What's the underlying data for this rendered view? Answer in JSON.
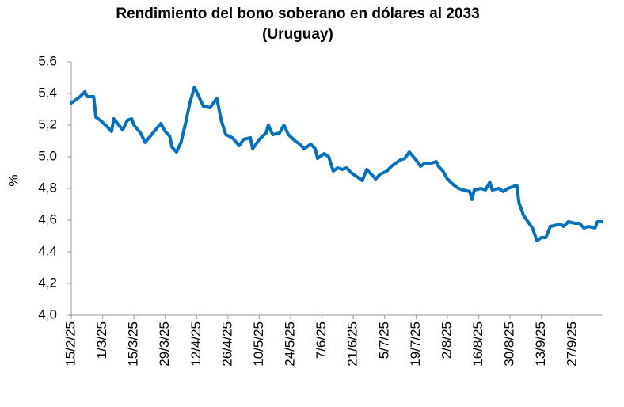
{
  "chart_data": {
    "type": "line",
    "title": [
      "Rendimiento del bono soberano en dólares al 2033",
      "(Uruguay)"
    ],
    "y_label": "%",
    "x": [
      "2025-02-15",
      "2025-02-19",
      "2025-02-21",
      "2025-02-22",
      "2025-02-25",
      "2025-02-26",
      "2025-02-28",
      "2025-03-03",
      "2025-03-05",
      "2025-03-06",
      "2025-03-10",
      "2025-03-12",
      "2025-03-14",
      "2025-03-15",
      "2025-03-18",
      "2025-03-20",
      "2025-03-24",
      "2025-03-27",
      "2025-03-29",
      "2025-03-31",
      "2025-04-01",
      "2025-04-03",
      "2025-04-05",
      "2025-04-07",
      "2025-04-09",
      "2025-04-11",
      "2025-04-13",
      "2025-04-15",
      "2025-04-18",
      "2025-04-20",
      "2025-04-21",
      "2025-04-23",
      "2025-04-25",
      "2025-04-28",
      "2025-05-01",
      "2025-05-03",
      "2025-05-06",
      "2025-05-07",
      "2025-05-10",
      "2025-05-13",
      "2025-05-14",
      "2025-05-16",
      "2025-05-19",
      "2025-05-21",
      "2025-05-23",
      "2025-05-26",
      "2025-05-28",
      "2025-05-30",
      "2025-06-02",
      "2025-06-04",
      "2025-06-05",
      "2025-06-08",
      "2025-06-10",
      "2025-06-12",
      "2025-06-14",
      "2025-06-16",
      "2025-06-18",
      "2025-06-20",
      "2025-06-22",
      "2025-06-25",
      "2025-06-27",
      "2025-06-29",
      "2025-07-01",
      "2025-07-03",
      "2025-07-06",
      "2025-07-08",
      "2025-07-10",
      "2025-07-12",
      "2025-07-14",
      "2025-07-16",
      "2025-07-19",
      "2025-07-21",
      "2025-07-23",
      "2025-07-26",
      "2025-07-28",
      "2025-07-29",
      "2025-07-31",
      "2025-08-02",
      "2025-08-05",
      "2025-08-07",
      "2025-08-09",
      "2025-08-12",
      "2025-08-13",
      "2025-08-14",
      "2025-08-17",
      "2025-08-19",
      "2025-08-21",
      "2025-08-22",
      "2025-08-25",
      "2025-08-27",
      "2025-08-29",
      "2025-08-31",
      "2025-09-02",
      "2025-09-03",
      "2025-09-05",
      "2025-09-07",
      "2025-09-09",
      "2025-09-11",
      "2025-09-13",
      "2025-09-15",
      "2025-09-17",
      "2025-09-20",
      "2025-09-22",
      "2025-09-23",
      "2025-09-25",
      "2025-09-28",
      "2025-09-30",
      "2025-10-02",
      "2025-10-04",
      "2025-10-07",
      "2025-10-08",
      "2025-10-10"
    ],
    "series": [
      {
        "color": "#0070c0",
        "values": [
          5.34,
          5.38,
          5.41,
          5.38,
          5.38,
          5.25,
          5.23,
          5.19,
          5.16,
          5.24,
          5.17,
          5.23,
          5.24,
          5.2,
          5.15,
          5.09,
          5.16,
          5.21,
          5.16,
          5.13,
          5.06,
          5.03,
          5.09,
          5.21,
          5.34,
          5.44,
          5.38,
          5.32,
          5.31,
          5.35,
          5.37,
          5.23,
          5.14,
          5.12,
          5.07,
          5.11,
          5.12,
          5.05,
          5.11,
          5.15,
          5.2,
          5.14,
          5.15,
          5.2,
          5.14,
          5.1,
          5.08,
          5.05,
          5.08,
          5.05,
          4.99,
          5.02,
          5.0,
          4.91,
          4.93,
          4.92,
          4.93,
          4.9,
          4.88,
          4.85,
          4.92,
          4.89,
          4.86,
          4.89,
          4.91,
          4.94,
          4.96,
          4.98,
          4.99,
          5.03,
          4.98,
          4.94,
          4.96,
          4.96,
          4.97,
          4.94,
          4.91,
          4.86,
          4.82,
          4.8,
          4.79,
          4.78,
          4.73,
          4.79,
          4.8,
          4.79,
          4.84,
          4.79,
          4.8,
          4.78,
          4.8,
          4.81,
          4.82,
          4.71,
          4.63,
          4.59,
          4.55,
          4.47,
          4.49,
          4.49,
          4.56,
          4.57,
          4.57,
          4.56,
          4.59,
          4.58,
          4.58,
          4.55,
          4.56,
          4.55,
          4.59,
          4.59
        ]
      }
    ],
    "xlim": [
      "2025-02-15",
      "2025-10-10"
    ],
    "xticks": [
      {
        "value": "2025-02-15",
        "label": "15/2/25"
      },
      {
        "value": "2025-03-01",
        "label": "1/3/25"
      },
      {
        "value": "2025-03-15",
        "label": "15/3/25"
      },
      {
        "value": "2025-03-29",
        "label": "29/3/25"
      },
      {
        "value": "2025-04-12",
        "label": "12/4/25"
      },
      {
        "value": "2025-04-26",
        "label": "26/4/25"
      },
      {
        "value": "2025-05-10",
        "label": "10/5/25"
      },
      {
        "value": "2025-05-24",
        "label": "24/5/25"
      },
      {
        "value": "2025-06-07",
        "label": "7/6/25"
      },
      {
        "value": "2025-06-21",
        "label": "21/6/25"
      },
      {
        "value": "2025-07-05",
        "label": "5/7/25"
      },
      {
        "value": "2025-07-19",
        "label": "19/7/25"
      },
      {
        "value": "2025-08-02",
        "label": "2/8/25"
      },
      {
        "value": "2025-08-16",
        "label": "16/8/25"
      },
      {
        "value": "2025-08-30",
        "label": "30/8/25"
      },
      {
        "value": "2025-09-13",
        "label": "13/9/25"
      },
      {
        "value": "2025-09-27",
        "label": "27/9/25"
      }
    ],
    "ylim": [
      4.0,
      5.6
    ],
    "yticks": [
      {
        "value": 4.0,
        "label": "4,0"
      },
      {
        "value": 4.2,
        "label": "4,2"
      },
      {
        "value": 4.4,
        "label": "4,4"
      },
      {
        "value": 4.6,
        "label": "4,6"
      },
      {
        "value": 4.8,
        "label": "4,8"
      },
      {
        "value": 5.0,
        "label": "5,0"
      },
      {
        "value": 5.2,
        "label": "5,2"
      },
      {
        "value": 5.4,
        "label": "5,4"
      },
      {
        "value": 5.6,
        "label": "5,6"
      }
    ],
    "grid": false
  }
}
